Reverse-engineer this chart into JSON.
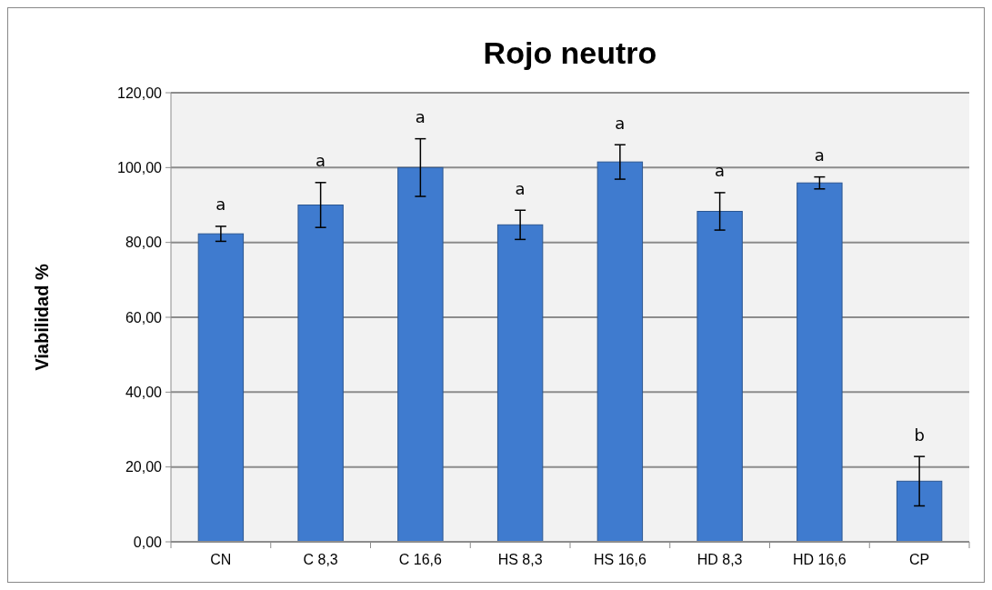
{
  "chart_data": {
    "type": "bar",
    "title": "Rojo neutro",
    "ylabel": "Viabilidad %",
    "categories": [
      "CN",
      "C 8,3",
      "C 16,6",
      "HS 8,3",
      "HS 16,6",
      "HD 8,3",
      "HD 16,6",
      "CP"
    ],
    "values": [
      82.3,
      90,
      100,
      84.7,
      101.5,
      88.3,
      95.9,
      16.2
    ],
    "errors": [
      2,
      6,
      7.7,
      3.9,
      4.6,
      5,
      1.6,
      6.6
    ],
    "color": "#3f7bcf",
    "ylim": [
      0,
      120
    ],
    "yticks": [
      {
        "value": 0,
        "label": "0,00"
      },
      {
        "value": 20,
        "label": "20,00"
      },
      {
        "value": 40,
        "label": "40,00"
      },
      {
        "value": 60,
        "label": "60,00"
      },
      {
        "value": 80,
        "label": "80,00"
      },
      {
        "value": 100,
        "label": "100,00"
      },
      {
        "value": 120,
        "label": "120,00"
      }
    ],
    "grid": "y",
    "annotations": [
      "a",
      "a",
      "a",
      "a",
      "a",
      "a",
      "a",
      "b"
    ]
  }
}
